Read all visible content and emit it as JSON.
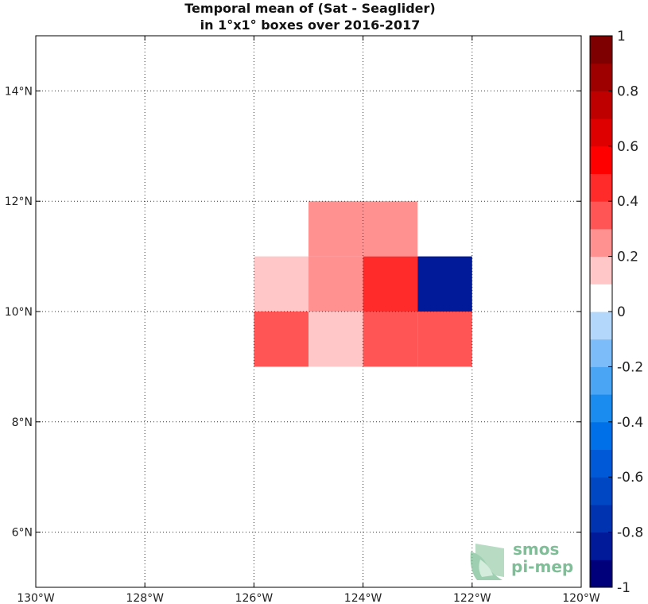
{
  "chart_data": {
    "type": "heatmap",
    "title": [
      "Temporal mean of (Sat - Seaglider)",
      "in 1°x1° boxes over 2016-2017"
    ],
    "xlim": [
      -130,
      -120
    ],
    "ylim": [
      5,
      15
    ],
    "grid": true,
    "x_ticks": [
      {
        "value": -130,
        "label": "130°W"
      },
      {
        "value": -128,
        "label": "128°W"
      },
      {
        "value": -126,
        "label": "126°W"
      },
      {
        "value": -124,
        "label": "124°W"
      },
      {
        "value": -122,
        "label": "122°W"
      },
      {
        "value": -120,
        "label": "120°W"
      }
    ],
    "y_ticks": [
      {
        "value": 6,
        "label": "6°N"
      },
      {
        "value": 8,
        "label": "8°N"
      },
      {
        "value": 10,
        "label": "10°N"
      },
      {
        "value": 12,
        "label": "12°N"
      },
      {
        "value": 14,
        "label": "14°N"
      }
    ],
    "cells": [
      {
        "lon": [
          -125,
          -124
        ],
        "lat": [
          11,
          12
        ],
        "value": 0.25
      },
      {
        "lon": [
          -124,
          -123
        ],
        "lat": [
          11,
          12
        ],
        "value": 0.25
      },
      {
        "lon": [
          -126,
          -125
        ],
        "lat": [
          10,
          11
        ],
        "value": 0.15
      },
      {
        "lon": [
          -125,
          -124
        ],
        "lat": [
          10,
          11
        ],
        "value": 0.25
      },
      {
        "lon": [
          -124,
          -123
        ],
        "lat": [
          10,
          11
        ],
        "value": 0.45
      },
      {
        "lon": [
          -123,
          -122
        ],
        "lat": [
          10,
          11
        ],
        "value": -0.85
      },
      {
        "lon": [
          -126,
          -125
        ],
        "lat": [
          9,
          10
        ],
        "value": 0.35
      },
      {
        "lon": [
          -125,
          -124
        ],
        "lat": [
          9,
          10
        ],
        "value": 0.15
      },
      {
        "lon": [
          -124,
          -123
        ],
        "lat": [
          9,
          10
        ],
        "value": 0.35
      },
      {
        "lon": [
          -123,
          -122
        ],
        "lat": [
          9,
          10
        ],
        "value": 0.35
      }
    ],
    "colorbar": {
      "range": [
        -1,
        1
      ],
      "bins": 20,
      "colors": [
        "#00007a",
        "#001a9a",
        "#0033b0",
        "#0047c4",
        "#005ad8",
        "#0070e8",
        "#1a8cf0",
        "#4aa5f5",
        "#7cbcf8",
        "#b3d7fa",
        "#ffffff",
        "#ffc7c7",
        "#ff9191",
        "#ff5555",
        "#ff2a2a",
        "#ff0000",
        "#de0000",
        "#be0000",
        "#9e0000",
        "#7e0000"
      ],
      "ticks": [
        {
          "value": 1,
          "label": "1"
        },
        {
          "value": 0.8,
          "label": "0.8"
        },
        {
          "value": 0.6,
          "label": "0.6"
        },
        {
          "value": 0.4,
          "label": "0.4"
        },
        {
          "value": 0.2,
          "label": "0.2"
        },
        {
          "value": 0,
          "label": "0"
        },
        {
          "value": -0.2,
          "label": "-0.2"
        },
        {
          "value": -0.4,
          "label": "-0.4"
        },
        {
          "value": -0.6,
          "label": "-0.6"
        },
        {
          "value": -0.8,
          "label": "-0.8"
        },
        {
          "value": -1,
          "label": "-1"
        }
      ]
    }
  },
  "logo": {
    "line1": "smos",
    "line2": "pi-mep",
    "color": "#7fbf98"
  }
}
